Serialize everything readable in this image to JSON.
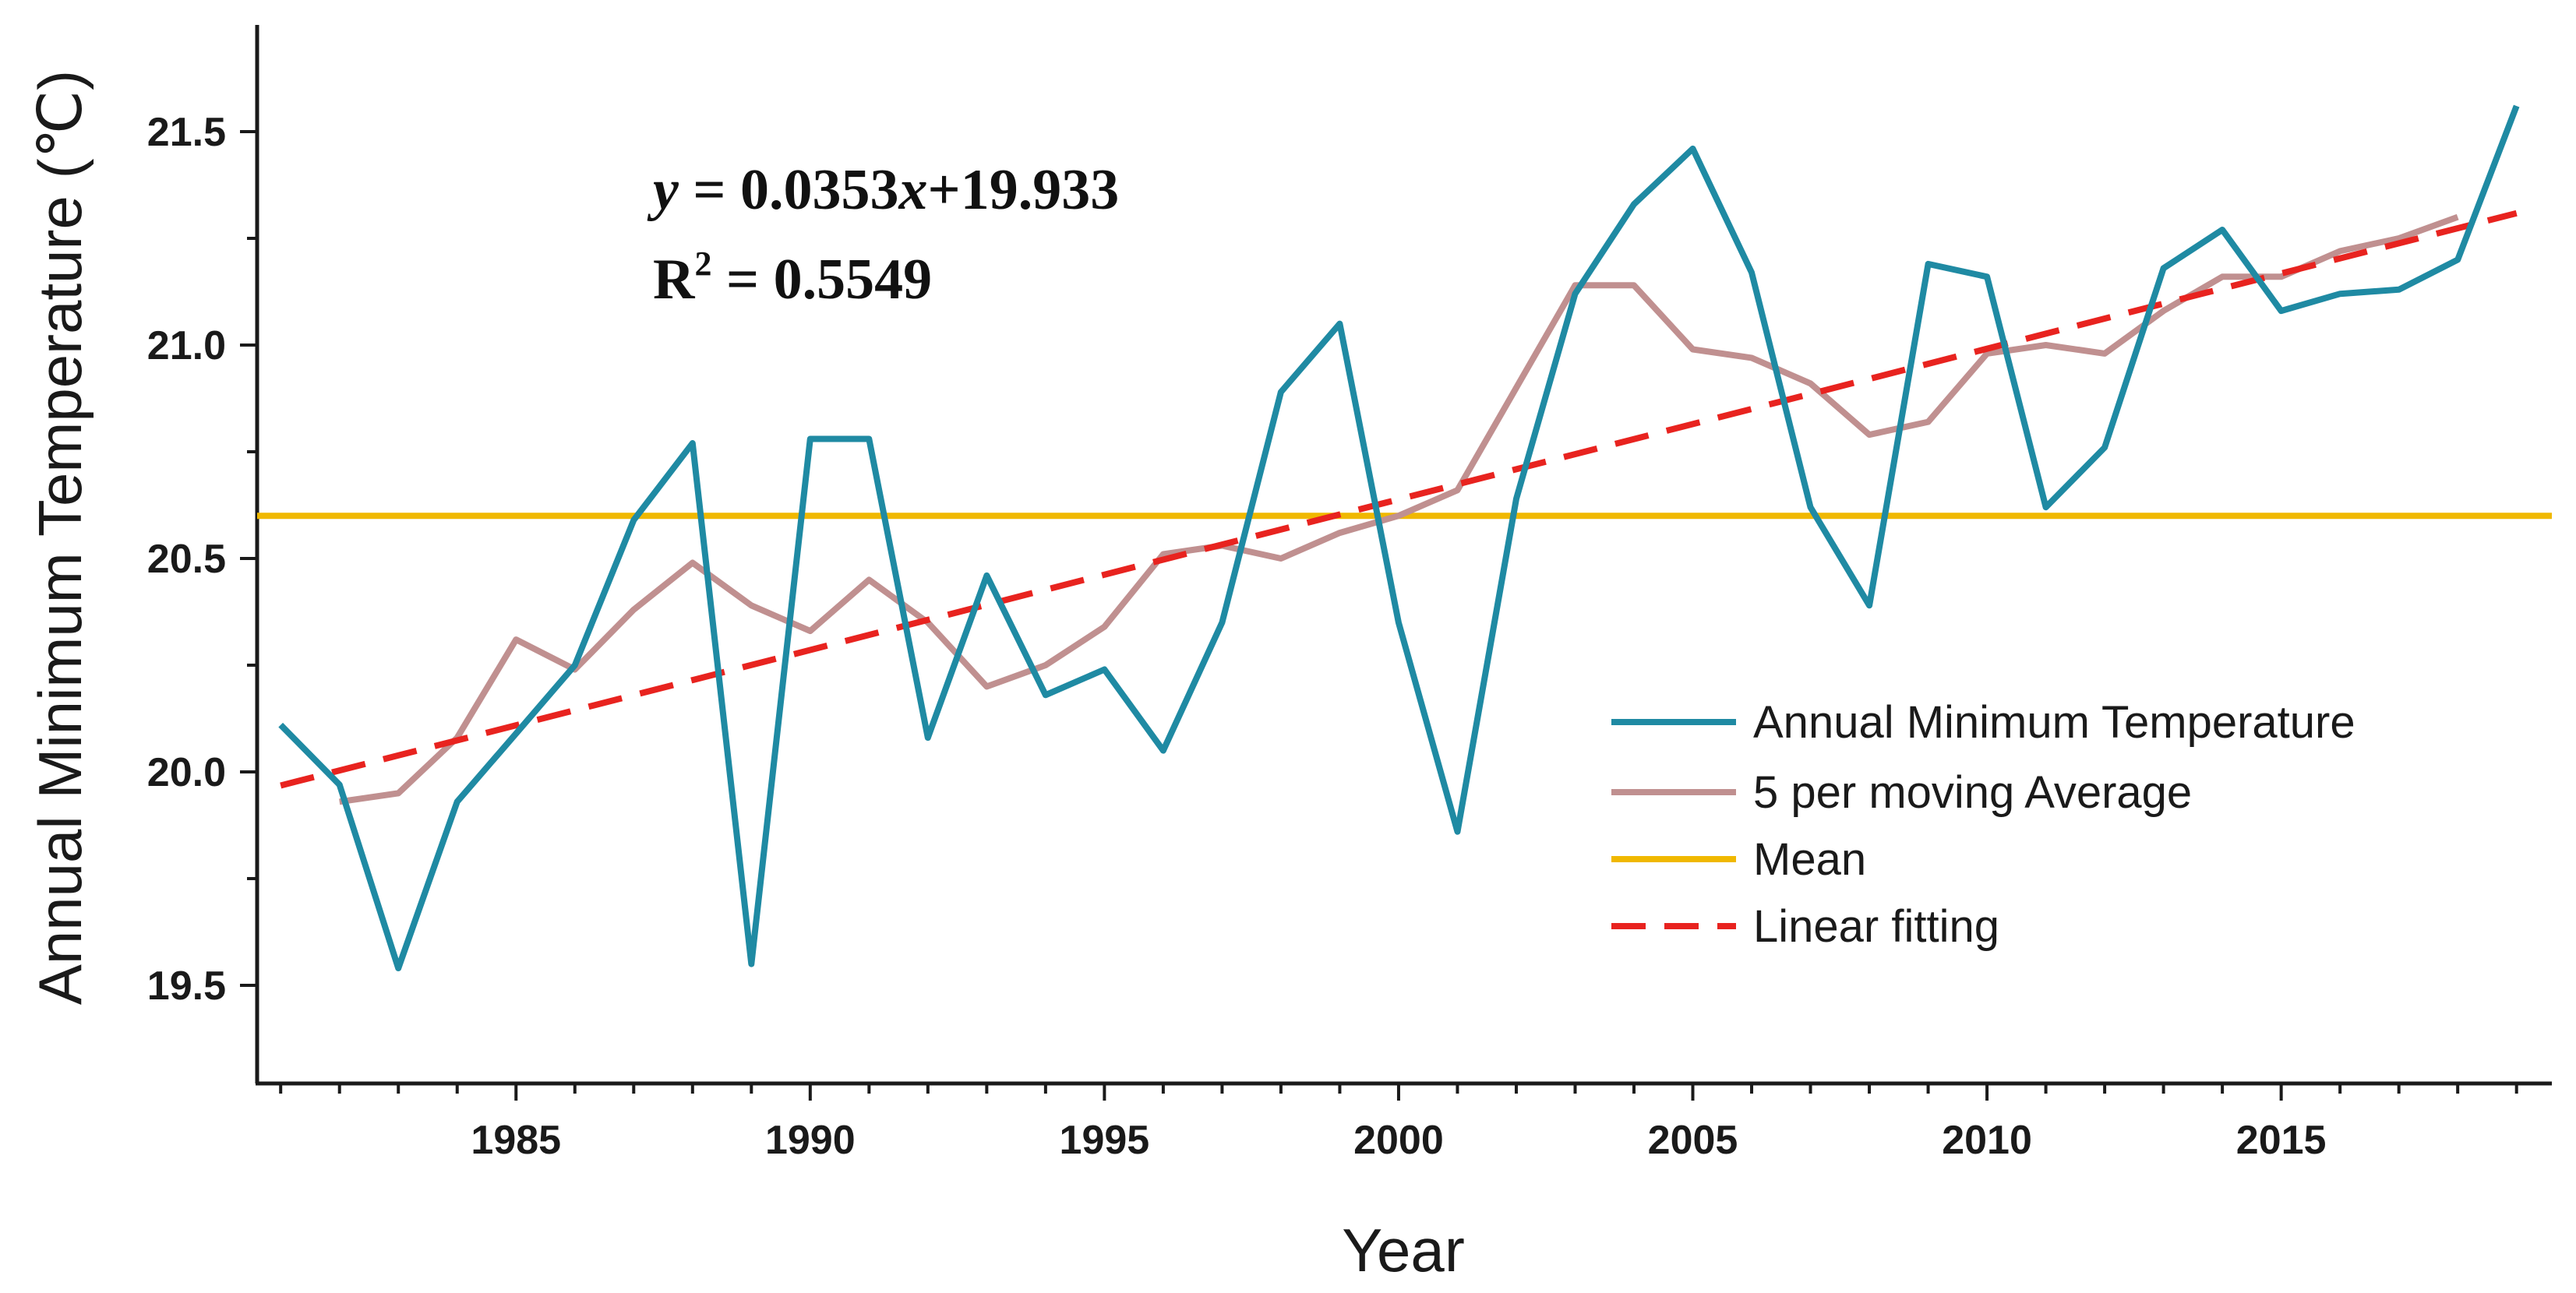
{
  "chart_data": {
    "type": "line",
    "title": "",
    "xlabel": "Year",
    "ylabel": "Annual Minimum Temperature (℃)",
    "xlim": [
      1980.6,
      2019.6
    ],
    "ylim": [
      19.27,
      21.75
    ],
    "x_ticks": [
      1985,
      1990,
      1995,
      2000,
      2005,
      2010,
      2015
    ],
    "x_tick_labels": [
      "1985",
      "1990",
      "1995",
      "2000",
      "2005",
      "2010",
      "2015"
    ],
    "y_ticks": [
      19.5,
      20.0,
      20.5,
      21.0,
      21.5
    ],
    "y_tick_labels": [
      "19.5",
      "20.0",
      "20.5",
      "21.0",
      "21.5"
    ],
    "grid": false,
    "legend_position": "bottom-right",
    "annotation": {
      "equation_y": "y",
      "equation_rest": " = 0.0353",
      "equation_x": "x",
      "equation_tail": "+19.933",
      "r2_label": "R",
      "r2_sup": "2",
      "r2_value": " = 0.5549"
    },
    "series": [
      {
        "name": "Annual Minimum Temperature",
        "color": "#1f8aa3",
        "style": "solid",
        "x": [
          1981,
          1982,
          1983,
          1984,
          1985,
          1986,
          1987,
          1988,
          1989,
          1990,
          1991,
          1992,
          1993,
          1994,
          1995,
          1996,
          1997,
          1998,
          1999,
          2000,
          2001,
          2002,
          2003,
          2004,
          2005,
          2006,
          2007,
          2008,
          2009,
          2010,
          2011,
          2012,
          2013,
          2014,
          2015,
          2016,
          2017,
          2018,
          2019
        ],
        "values": [
          20.11,
          19.97,
          19.54,
          19.93,
          20.09,
          20.25,
          20.59,
          20.77,
          19.55,
          20.78,
          20.78,
          20.08,
          20.46,
          20.18,
          20.24,
          20.05,
          20.35,
          20.89,
          21.05,
          20.35,
          19.86,
          20.64,
          21.12,
          21.33,
          21.46,
          21.17,
          20.62,
          20.39,
          21.19,
          21.16,
          20.62,
          20.76,
          21.18,
          21.27,
          21.08,
          21.12,
          21.13,
          21.2,
          21.56
        ]
      },
      {
        "name": "5 per moving Average",
        "color": "#c09090",
        "style": "solid",
        "x": [
          1982,
          1983,
          1984,
          1985,
          1986,
          1987,
          1988,
          1989,
          1990,
          1991,
          1992,
          1993,
          1994,
          1995,
          1996,
          1997,
          1998,
          1999,
          2000,
          2001,
          2002,
          2003,
          2004,
          2005,
          2006,
          2007,
          2008,
          2009,
          2010,
          2011,
          2012,
          2013,
          2014,
          2015,
          2016,
          2017,
          2018
        ],
        "values": [
          19.93,
          19.95,
          20.08,
          20.31,
          20.24,
          20.38,
          20.49,
          20.39,
          20.33,
          20.45,
          20.35,
          20.2,
          20.25,
          20.34,
          20.51,
          20.53,
          20.5,
          20.56,
          20.6,
          20.66,
          20.9,
          21.14,
          21.14,
          20.99,
          20.97,
          20.91,
          20.79,
          20.82,
          20.98,
          21.0,
          20.98,
          21.08,
          21.16,
          21.16,
          21.22,
          21.25,
          21.3
        ]
      },
      {
        "name": "Mean",
        "color": "#f0b800",
        "style": "solid",
        "x": [
          1980.6,
          2019.6
        ],
        "values": [
          20.6,
          20.6
        ]
      },
      {
        "name": "Linear fitting",
        "color": "#e8231f",
        "style": "dashed",
        "x": [
          1981,
          2019
        ],
        "values": [
          19.968,
          21.309
        ]
      }
    ]
  }
}
